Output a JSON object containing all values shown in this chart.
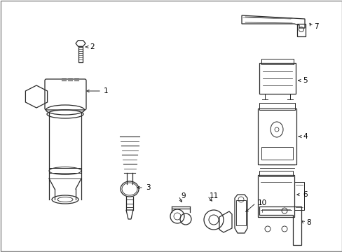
{
  "background_color": "#ffffff",
  "line_color": "#2a2a2a",
  "label_color": "#000000",
  "figsize": [
    4.89,
    3.6
  ],
  "dpi": 100,
  "border_color": "#888888"
}
